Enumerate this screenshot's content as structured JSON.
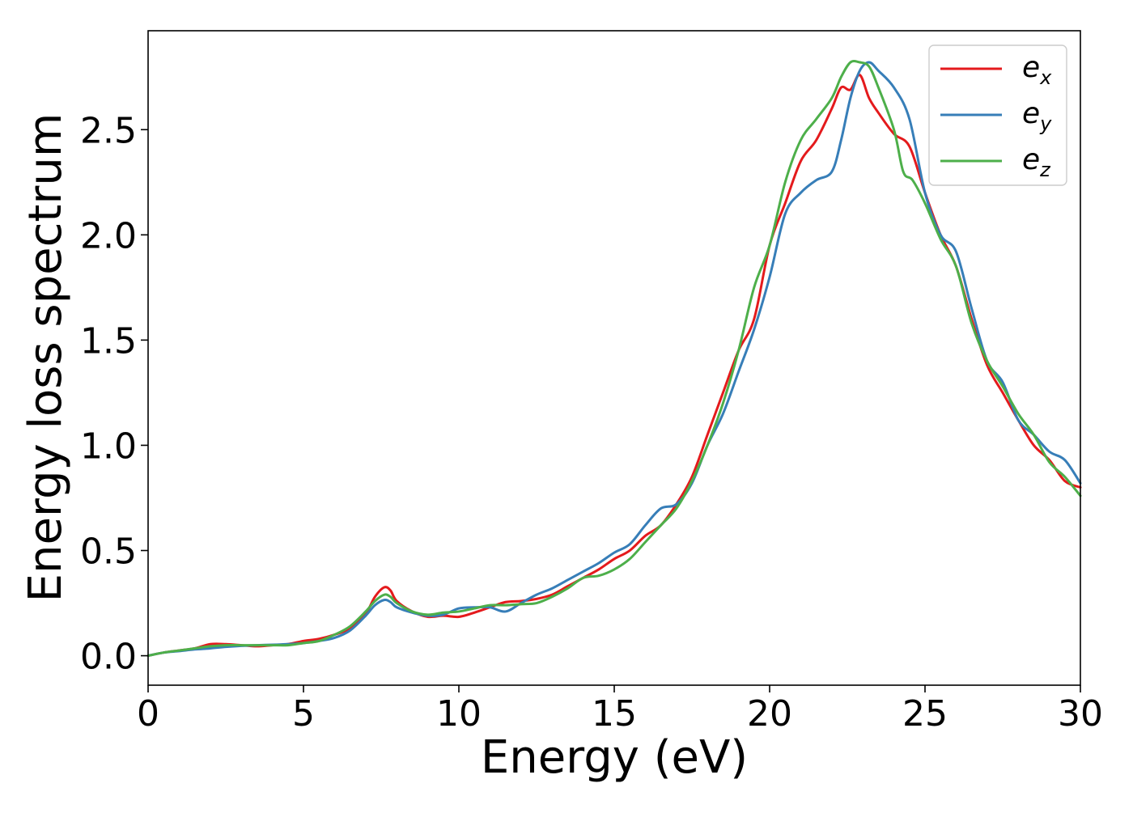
{
  "chart_data": {
    "type": "line",
    "xlabel": "Energy (eV)",
    "ylabel": "Energy loss spectrum",
    "xlim": [
      0,
      30
    ],
    "ylim": [
      -0.14,
      2.97
    ],
    "xticks": [
      0,
      5,
      10,
      15,
      20,
      25,
      30
    ],
    "yticks": [
      0.0,
      0.5,
      1.0,
      1.5,
      2.0,
      2.5
    ],
    "xtick_labels": [
      "0",
      "5",
      "10",
      "15",
      "20",
      "25",
      "30"
    ],
    "ytick_labels": [
      "0.0",
      "0.5",
      "1.0",
      "1.5",
      "2.0",
      "2.5"
    ],
    "grid": false,
    "legend_position": "top-right",
    "series": [
      {
        "name": "e_x",
        "label_main": "e",
        "label_sub": "x",
        "color": "#e41a1c",
        "points": [
          [
            0,
            0.0
          ],
          [
            0.5,
            0.015
          ],
          [
            1.0,
            0.025
          ],
          [
            1.5,
            0.035
          ],
          [
            2.0,
            0.055
          ],
          [
            2.5,
            0.055
          ],
          [
            3.0,
            0.05
          ],
          [
            3.5,
            0.045
          ],
          [
            4.0,
            0.05
          ],
          [
            4.5,
            0.055
          ],
          [
            5.0,
            0.07
          ],
          [
            5.5,
            0.08
          ],
          [
            6.0,
            0.1
          ],
          [
            6.5,
            0.13
          ],
          [
            7.0,
            0.2
          ],
          [
            7.3,
            0.28
          ],
          [
            7.6,
            0.325
          ],
          [
            7.8,
            0.31
          ],
          [
            8.0,
            0.26
          ],
          [
            8.5,
            0.21
          ],
          [
            9.0,
            0.185
          ],
          [
            9.5,
            0.19
          ],
          [
            10.0,
            0.185
          ],
          [
            10.5,
            0.205
          ],
          [
            11.0,
            0.23
          ],
          [
            11.5,
            0.255
          ],
          [
            12.0,
            0.26
          ],
          [
            12.5,
            0.27
          ],
          [
            13.0,
            0.29
          ],
          [
            13.5,
            0.33
          ],
          [
            14.0,
            0.37
          ],
          [
            14.5,
            0.41
          ],
          [
            15.0,
            0.46
          ],
          [
            15.5,
            0.5
          ],
          [
            16.0,
            0.57
          ],
          [
            16.5,
            0.62
          ],
          [
            17.0,
            0.72
          ],
          [
            17.5,
            0.85
          ],
          [
            18.0,
            1.05
          ],
          [
            18.5,
            1.25
          ],
          [
            19.0,
            1.45
          ],
          [
            19.5,
            1.6
          ],
          [
            20.0,
            1.95
          ],
          [
            20.5,
            2.15
          ],
          [
            21.0,
            2.35
          ],
          [
            21.5,
            2.45
          ],
          [
            22.0,
            2.6
          ],
          [
            22.3,
            2.7
          ],
          [
            22.6,
            2.69
          ],
          [
            22.9,
            2.76
          ],
          [
            23.2,
            2.65
          ],
          [
            23.5,
            2.58
          ],
          [
            24.0,
            2.48
          ],
          [
            24.5,
            2.42
          ],
          [
            25.0,
            2.2
          ],
          [
            25.5,
            2.0
          ],
          [
            26.0,
            1.85
          ],
          [
            26.5,
            1.6
          ],
          [
            27.0,
            1.38
          ],
          [
            27.5,
            1.25
          ],
          [
            28.0,
            1.12
          ],
          [
            28.5,
            1.0
          ],
          [
            29.0,
            0.93
          ],
          [
            29.5,
            0.83
          ],
          [
            30.0,
            0.8
          ]
        ]
      },
      {
        "name": "e_y",
        "label_main": "e",
        "label_sub": "y",
        "color": "#377eb8",
        "points": [
          [
            0,
            0.0
          ],
          [
            0.5,
            0.015
          ],
          [
            1.0,
            0.022
          ],
          [
            1.5,
            0.03
          ],
          [
            2.0,
            0.035
          ],
          [
            2.5,
            0.042
          ],
          [
            3.0,
            0.047
          ],
          [
            3.5,
            0.05
          ],
          [
            4.0,
            0.052
          ],
          [
            4.5,
            0.055
          ],
          [
            5.0,
            0.06
          ],
          [
            5.5,
            0.07
          ],
          [
            6.0,
            0.085
          ],
          [
            6.5,
            0.12
          ],
          [
            7.0,
            0.19
          ],
          [
            7.3,
            0.24
          ],
          [
            7.6,
            0.265
          ],
          [
            7.8,
            0.255
          ],
          [
            8.0,
            0.23
          ],
          [
            8.5,
            0.205
          ],
          [
            9.0,
            0.19
          ],
          [
            9.5,
            0.195
          ],
          [
            10.0,
            0.225
          ],
          [
            10.5,
            0.23
          ],
          [
            11.0,
            0.23
          ],
          [
            11.5,
            0.21
          ],
          [
            12.0,
            0.25
          ],
          [
            12.5,
            0.29
          ],
          [
            13.0,
            0.32
          ],
          [
            13.5,
            0.36
          ],
          [
            14.0,
            0.4
          ],
          [
            14.5,
            0.44
          ],
          [
            15.0,
            0.49
          ],
          [
            15.5,
            0.53
          ],
          [
            16.0,
            0.62
          ],
          [
            16.5,
            0.7
          ],
          [
            17.0,
            0.72
          ],
          [
            17.5,
            0.82
          ],
          [
            18.0,
            1.0
          ],
          [
            18.5,
            1.15
          ],
          [
            19.0,
            1.35
          ],
          [
            19.5,
            1.55
          ],
          [
            20.0,
            1.8
          ],
          [
            20.5,
            2.1
          ],
          [
            21.0,
            2.2
          ],
          [
            21.5,
            2.26
          ],
          [
            22.0,
            2.3
          ],
          [
            22.3,
            2.45
          ],
          [
            22.6,
            2.65
          ],
          [
            22.9,
            2.78
          ],
          [
            23.2,
            2.82
          ],
          [
            23.5,
            2.78
          ],
          [
            24.0,
            2.7
          ],
          [
            24.5,
            2.55
          ],
          [
            25.0,
            2.2
          ],
          [
            25.5,
            2.0
          ],
          [
            26.0,
            1.92
          ],
          [
            26.5,
            1.65
          ],
          [
            27.0,
            1.4
          ],
          [
            27.5,
            1.3
          ],
          [
            28.0,
            1.12
          ],
          [
            28.5,
            1.05
          ],
          [
            29.0,
            0.97
          ],
          [
            29.5,
            0.93
          ],
          [
            30.0,
            0.82
          ]
        ]
      },
      {
        "name": "e_z",
        "label_main": "e",
        "label_sub": "z",
        "color": "#4daf4a",
        "points": [
          [
            0,
            0.0
          ],
          [
            0.5,
            0.015
          ],
          [
            1.0,
            0.025
          ],
          [
            1.5,
            0.035
          ],
          [
            2.0,
            0.045
          ],
          [
            2.5,
            0.05
          ],
          [
            3.0,
            0.05
          ],
          [
            3.5,
            0.05
          ],
          [
            4.0,
            0.05
          ],
          [
            4.5,
            0.05
          ],
          [
            5.0,
            0.06
          ],
          [
            5.5,
            0.07
          ],
          [
            6.0,
            0.1
          ],
          [
            6.5,
            0.14
          ],
          [
            7.0,
            0.21
          ],
          [
            7.3,
            0.26
          ],
          [
            7.6,
            0.29
          ],
          [
            7.8,
            0.28
          ],
          [
            8.0,
            0.25
          ],
          [
            8.5,
            0.21
          ],
          [
            9.0,
            0.195
          ],
          [
            9.5,
            0.205
          ],
          [
            10.0,
            0.21
          ],
          [
            10.5,
            0.225
          ],
          [
            11.0,
            0.24
          ],
          [
            11.5,
            0.24
          ],
          [
            12.0,
            0.245
          ],
          [
            12.5,
            0.25
          ],
          [
            13.0,
            0.28
          ],
          [
            13.5,
            0.32
          ],
          [
            14.0,
            0.37
          ],
          [
            14.5,
            0.38
          ],
          [
            15.0,
            0.41
          ],
          [
            15.5,
            0.46
          ],
          [
            16.0,
            0.54
          ],
          [
            16.5,
            0.62
          ],
          [
            17.0,
            0.7
          ],
          [
            17.5,
            0.83
          ],
          [
            18.0,
            1.0
          ],
          [
            18.5,
            1.2
          ],
          [
            19.0,
            1.45
          ],
          [
            19.5,
            1.75
          ],
          [
            20.0,
            1.95
          ],
          [
            20.5,
            2.25
          ],
          [
            21.0,
            2.45
          ],
          [
            21.5,
            2.55
          ],
          [
            22.0,
            2.65
          ],
          [
            22.3,
            2.75
          ],
          [
            22.6,
            2.82
          ],
          [
            22.9,
            2.82
          ],
          [
            23.2,
            2.8
          ],
          [
            23.5,
            2.7
          ],
          [
            24.0,
            2.5
          ],
          [
            24.3,
            2.3
          ],
          [
            24.6,
            2.26
          ],
          [
            25.0,
            2.15
          ],
          [
            25.5,
            1.98
          ],
          [
            26.0,
            1.85
          ],
          [
            26.5,
            1.58
          ],
          [
            27.0,
            1.4
          ],
          [
            27.5,
            1.28
          ],
          [
            28.0,
            1.15
          ],
          [
            28.5,
            1.05
          ],
          [
            29.0,
            0.92
          ],
          [
            29.5,
            0.85
          ],
          [
            30.0,
            0.76
          ]
        ]
      }
    ]
  }
}
